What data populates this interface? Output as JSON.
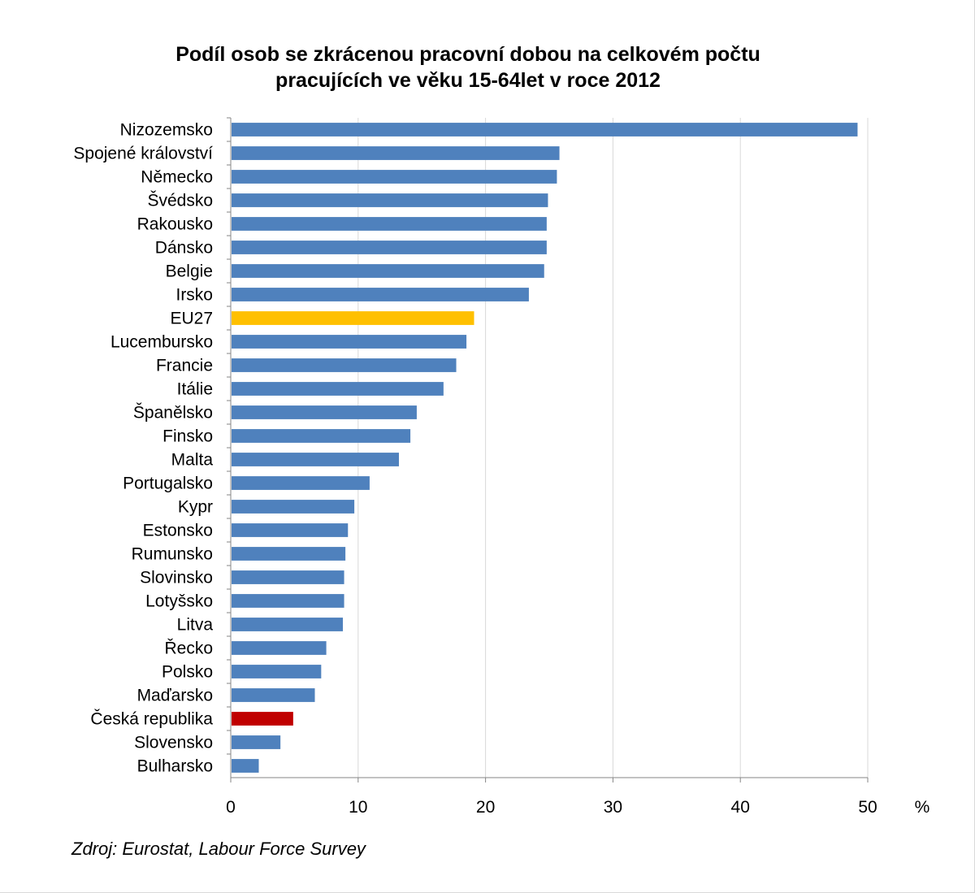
{
  "chart_data": {
    "type": "bar",
    "orientation": "horizontal",
    "title_line1": "Podíl osob se zkrácenou  pracovní  dobou  na  celkovém  počtu",
    "title_line2": "pracujících  ve  věku  15-64let  v roce  2012",
    "unit": "%",
    "xlim": [
      0,
      50
    ],
    "xticks": [
      0,
      10,
      20,
      30,
      40,
      50
    ],
    "grid": "vertical",
    "categories": [
      "Nizozemsko",
      "Spojené království",
      "Německo",
      "Švédsko",
      "Rakousko",
      "Dánsko",
      "Belgie",
      "Irsko",
      "EU27",
      "Lucembursko",
      "Francie",
      "Itálie",
      "Španělsko",
      "Finsko",
      "Malta",
      "Portugalsko",
      "Kypr",
      "Estonsko",
      "Rumunsko",
      "Slovinsko",
      "Lotyšsko",
      "Litva",
      "Řecko",
      "Polsko",
      "Maďarsko",
      "Česká republika",
      "Slovensko",
      "Bulharsko"
    ],
    "values": [
      49.2,
      25.8,
      25.6,
      24.9,
      24.8,
      24.8,
      24.6,
      23.4,
      19.1,
      18.5,
      17.7,
      16.7,
      14.6,
      14.1,
      13.2,
      10.9,
      9.7,
      9.2,
      9.0,
      8.9,
      8.9,
      8.8,
      7.5,
      7.1,
      6.6,
      4.9,
      3.9,
      2.2
    ],
    "colors": {
      "default": "#4F81BD",
      "EU27": "#FFC000",
      "Česká republika": "#C00000",
      "grid": "#D9D9D9",
      "axis": "#868686"
    }
  },
  "source": "Zdroj: Eurostat, Labour Force Survey"
}
